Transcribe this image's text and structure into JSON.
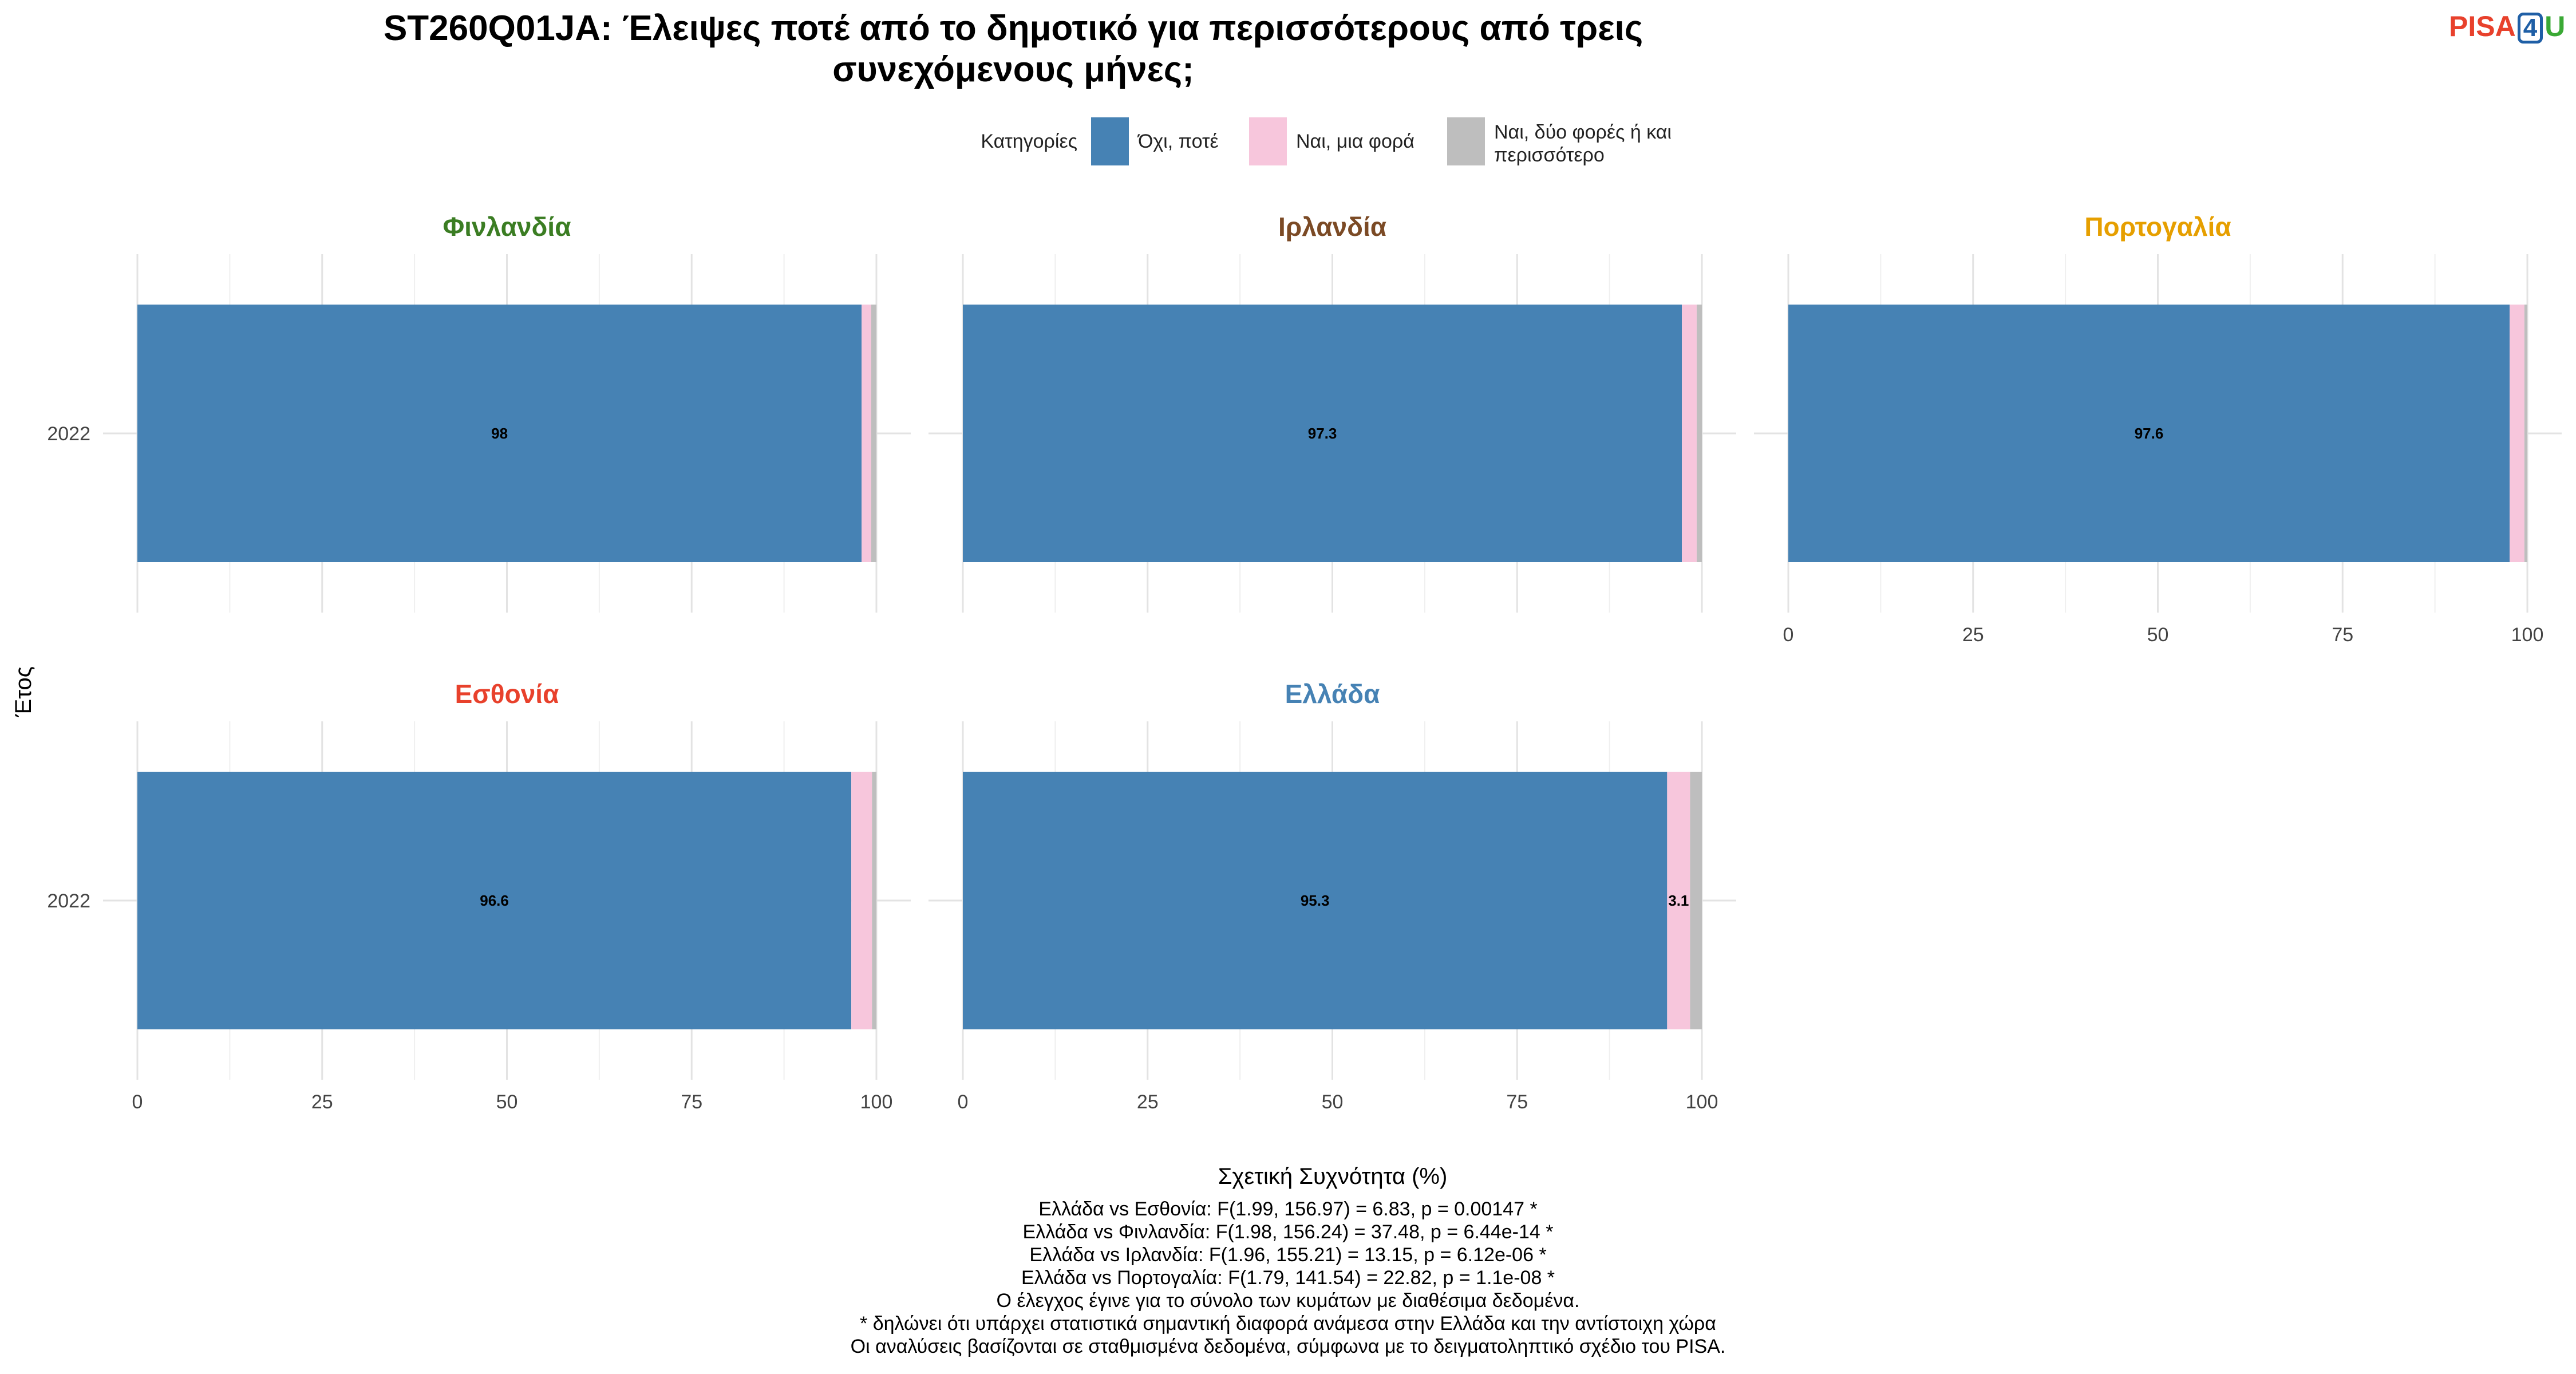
{
  "title": "ST260Q01JA: Έλειψες ποτέ από το δημοτικό για περισσότερους από τρεις συνεχόμενους μήνες;",
  "title_lines": [
    "ST260Q01JA: Έλειψες ποτέ από το δημοτικό για περισσότερους από τρεις",
    "συνεχόμενους μήνες;"
  ],
  "logo": {
    "part1": "PISA",
    "part2": "4",
    "part3": "U",
    "colors": [
      "#e8412c",
      "#1f5fa6",
      "#3aa935"
    ]
  },
  "footnotes": [
    "Ελλάδα vs Εσθονία: F(1.99, 156.97) = 6.83, p = 0.00147 *",
    "Ελλάδα vs Φινλανδία: F(1.98, 156.24) = 37.48, p = 6.44e-14 *",
    "Ελλάδα vs Ιρλανδία: F(1.96, 155.21) = 13.15, p = 6.12e-06 *",
    "Ελλάδα vs Πορτογαλία: F(1.79, 141.54) = 22.82, p = 1.1e-08 *",
    "Ο έλεγχος έγινε για το σύνολο των κυμάτων με διαθέσιμα δεδομένα.",
    "* δηλώνει ότι υπάρχει στατιστικά σημαντική διαφορά ανάμεσα στην Ελλάδα και την αντίστοιχη χώρα",
    "Οι αναλύσεις βασίζονται σε σταθμισμένα δεδομένα, σύμφωνα με το δειγματοληπτικό σχέδιο του PISA."
  ],
  "chart_data": {
    "type": "bar",
    "orientation": "horizontal",
    "stacked": true,
    "title": "ST260Q01JA: Έλειψες ποτέ από το δημοτικό για περισσότερους από τρεις συνεχόμενους μήνες;",
    "xlabel": "Σχετική Συχνότητα (%)",
    "ylabel": "Έτος",
    "xlim": [
      0,
      100
    ],
    "x_ticks": [
      "0",
      "25",
      "50",
      "75",
      "100"
    ],
    "grid": true,
    "legend": {
      "title": "Κατηγορίες",
      "position": "top",
      "items": [
        {
          "label": "Όχι, ποτέ",
          "label_lines": [
            "Όχι, ποτέ"
          ],
          "color": "#4682b4"
        },
        {
          "label": "Ναι, μια φορά",
          "label_lines": [
            "Ναι, μια φορά"
          ],
          "color": "#f7c6dc"
        },
        {
          "label": "Ναι, δύο φορές ή και περισσότερο",
          "label_lines": [
            "Ναι, δύο φορές ή και",
            "περισσότερο"
          ],
          "color": "#bebebe"
        }
      ]
    },
    "categories": [
      "2022"
    ],
    "facets": [
      {
        "name": "Φινλανδία",
        "color": "#3b7d23",
        "values": [
          98.0,
          1.3,
          0.7
        ],
        "labels": [
          "98",
          "",
          ""
        ]
      },
      {
        "name": "Ιρλανδία",
        "color": "#7b4a25",
        "values": [
          97.3,
          2.0,
          0.7
        ],
        "labels": [
          "97.3",
          "",
          ""
        ]
      },
      {
        "name": "Πορτογαλία",
        "color": "#e69f00",
        "values": [
          97.6,
          2.0,
          0.4
        ],
        "labels": [
          "97.6",
          "",
          ""
        ]
      },
      {
        "name": "Εσθονία",
        "color": "#e8412c",
        "values": [
          96.6,
          2.8,
          0.6
        ],
        "labels": [
          "96.6",
          "",
          ""
        ]
      },
      {
        "name": "Ελλάδα",
        "color": "#4682b4",
        "values": [
          95.3,
          3.1,
          1.6
        ],
        "labels": [
          "95.3",
          "3.1",
          ""
        ]
      }
    ]
  }
}
